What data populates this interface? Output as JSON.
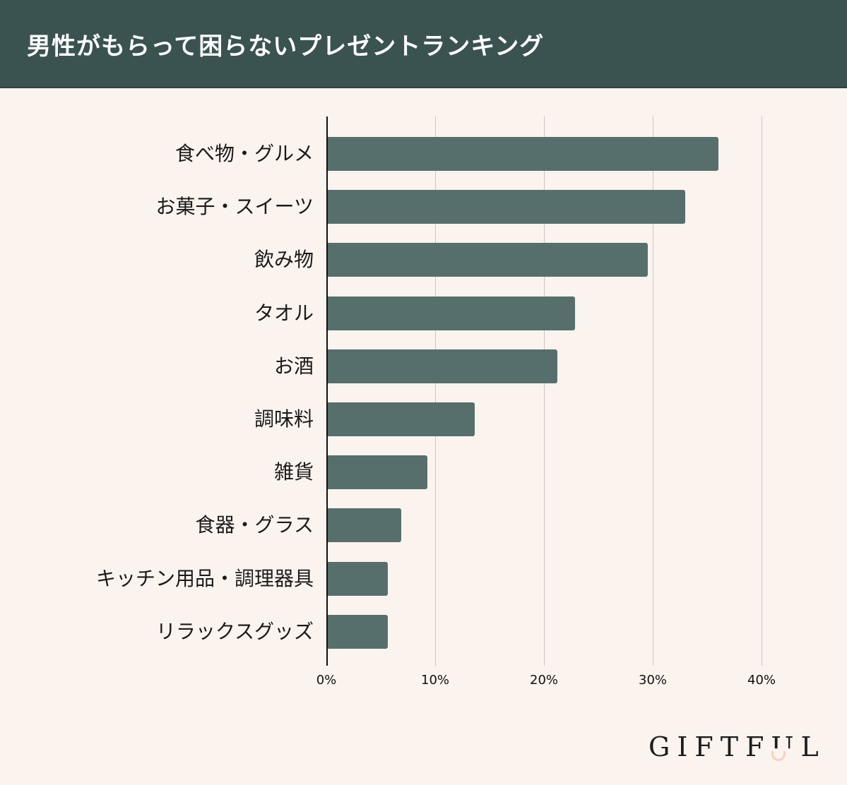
{
  "header": {
    "title": "男性がもらって困らないプレゼントランキング"
  },
  "colors": {
    "header_bg": "#3a5350",
    "page_bg": "#fbf3ee",
    "bar": "#566f6d",
    "gridline": "#cdc5c2",
    "logo_accent": "#f4d3bd"
  },
  "logo": {
    "text": "GIFTFUL",
    "part1": "GIFTF",
    "u": "U",
    "part2": "L"
  },
  "chart_data": {
    "type": "bar",
    "orientation": "horizontal",
    "title": "男性がもらって困らないプレゼントランキング",
    "xlabel": "",
    "ylabel": "",
    "categories": [
      "食べ物・グルメ",
      "お菓子・スイーツ",
      "飲み物",
      "タオル",
      "お酒",
      "調味料",
      "雑貨",
      "食器・グラス",
      "キッチン用品・調理器具",
      "リラックスグッズ"
    ],
    "values": [
      36.0,
      32.9,
      29.5,
      22.8,
      21.2,
      13.6,
      9.2,
      6.8,
      5.6,
      5.6
    ],
    "unit": "%",
    "xlim": [
      0,
      45
    ],
    "xticks": [
      "0%",
      "10%",
      "20%",
      "30%",
      "40%"
    ],
    "grid": "vertical",
    "legend": null
  }
}
